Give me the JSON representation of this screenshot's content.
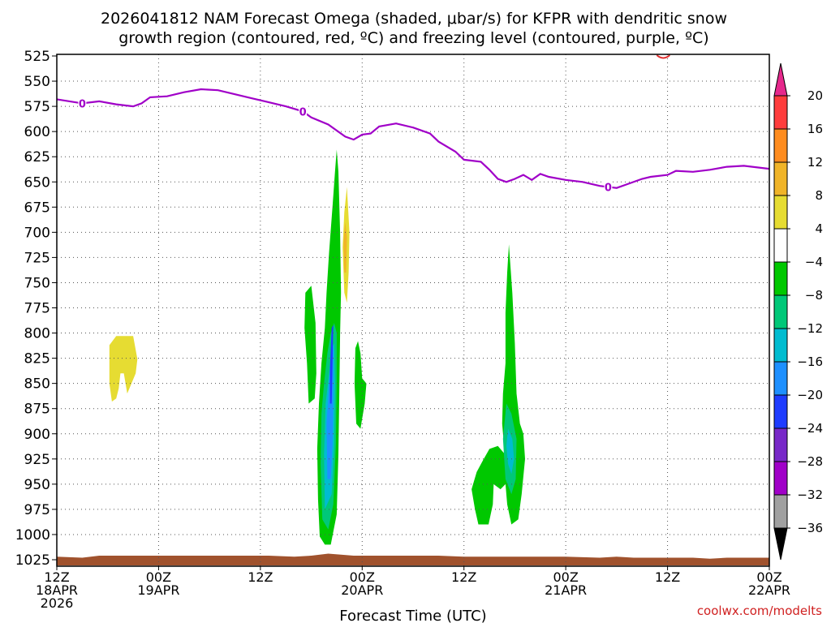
{
  "chart_data": {
    "type": "time-height cross section",
    "title_line1": "2026041812 NAM Forecast Omega (shaded, μbar/s) for KFPR with dendritic snow",
    "title_line2": "growth region (contoured, red, ºC) and freezing level (contoured, purple, ºC)",
    "xlabel": "Forecast Time (UTC)",
    "credit": "coolwx.com/modelts",
    "ylim": [
      525,
      1025
    ],
    "y_ticks": [
      525,
      550,
      575,
      600,
      625,
      650,
      675,
      700,
      725,
      750,
      775,
      800,
      825,
      850,
      875,
      900,
      925,
      950,
      975,
      1000,
      1025
    ],
    "xlim_hours": [
      0,
      84
    ],
    "x_ticks": [
      {
        "hour": 0,
        "line1": "12Z",
        "line2": "18APR",
        "line3": "2026"
      },
      {
        "hour": 12,
        "line1": "00Z",
        "line2": "19APR",
        "line3": ""
      },
      {
        "hour": 24,
        "line1": "12Z",
        "line2": "",
        "line3": ""
      },
      {
        "hour": 36,
        "line1": "00Z",
        "line2": "20APR",
        "line3": ""
      },
      {
        "hour": 48,
        "line1": "12Z",
        "line2": "",
        "line3": ""
      },
      {
        "hour": 60,
        "line1": "00Z",
        "line2": "21APR",
        "line3": ""
      },
      {
        "hour": 72,
        "line1": "12Z",
        "line2": "",
        "line3": ""
      },
      {
        "hour": 84,
        "line1": "00Z",
        "line2": "22APR",
        "line3": ""
      }
    ],
    "freezing_level": {
      "label": "0",
      "color": "#a000c8",
      "label_hours": [
        3,
        29,
        65
      ],
      "points": [
        [
          0,
          568
        ],
        [
          3,
          572
        ],
        [
          5,
          570
        ],
        [
          7,
          573
        ],
        [
          9,
          575
        ],
        [
          10,
          572
        ],
        [
          11,
          566
        ],
        [
          13,
          565
        ],
        [
          15,
          561
        ],
        [
          17,
          558
        ],
        [
          19,
          559
        ],
        [
          21,
          563
        ],
        [
          23,
          567
        ],
        [
          25,
          571
        ],
        [
          27,
          575
        ],
        [
          29,
          580
        ],
        [
          30,
          586
        ],
        [
          32,
          593
        ],
        [
          34,
          605
        ],
        [
          35,
          608
        ],
        [
          36,
          603
        ],
        [
          37,
          602
        ],
        [
          38,
          595
        ],
        [
          40,
          592
        ],
        [
          42,
          596
        ],
        [
          44,
          602
        ],
        [
          45,
          610
        ],
        [
          47,
          620
        ],
        [
          48,
          628
        ],
        [
          50,
          630
        ],
        [
          51,
          638
        ],
        [
          52,
          647
        ],
        [
          53,
          650
        ],
        [
          54,
          647
        ],
        [
          55,
          643
        ],
        [
          56,
          648
        ],
        [
          57,
          642
        ],
        [
          58,
          645
        ],
        [
          60,
          648
        ],
        [
          62,
          650
        ],
        [
          64,
          654
        ],
        [
          66,
          656
        ],
        [
          67,
          653
        ],
        [
          69,
          647
        ],
        [
          70,
          645
        ],
        [
          72,
          643
        ],
        [
          73,
          639
        ],
        [
          75,
          640
        ],
        [
          77,
          638
        ],
        [
          79,
          635
        ],
        [
          81,
          634
        ],
        [
          84,
          637
        ]
      ]
    },
    "dgz_contour": {
      "label": "dendritic snow growth region",
      "color": "#e03030",
      "hour": 71.5,
      "pressure": 525
    },
    "omega_regions": [
      {
        "color": "#00c800",
        "points": [
          [
            31.0,
            1002
          ],
          [
            30.8,
            965
          ],
          [
            30.7,
            915
          ],
          [
            30.9,
            870
          ],
          [
            31.2,
            830
          ],
          [
            31.6,
            795
          ],
          [
            31.8,
            760
          ],
          [
            32.1,
            720
          ],
          [
            32.5,
            675
          ],
          [
            32.8,
            640
          ],
          [
            33.0,
            618
          ],
          [
            33.2,
            640
          ],
          [
            33.4,
            700
          ],
          [
            33.5,
            760
          ],
          [
            33.4,
            800
          ],
          [
            33.3,
            860
          ],
          [
            33.2,
            920
          ],
          [
            33.0,
            980
          ],
          [
            32.3,
            1010
          ],
          [
            31.6,
            1010
          ]
        ]
      },
      {
        "color": "#00c878",
        "points": [
          [
            31.3,
            985
          ],
          [
            31.1,
            930
          ],
          [
            31.2,
            880
          ],
          [
            31.5,
            850
          ],
          [
            31.9,
            820
          ],
          [
            32.3,
            800
          ],
          [
            32.7,
            790
          ],
          [
            33.0,
            800
          ],
          [
            33.0,
            850
          ],
          [
            32.9,
            910
          ],
          [
            32.6,
            970
          ],
          [
            32.0,
            995
          ]
        ]
      },
      {
        "color": "#00bcd0",
        "points": [
          [
            31.6,
            975
          ],
          [
            31.5,
            920
          ],
          [
            31.7,
            870
          ],
          [
            32.1,
            840
          ],
          [
            32.4,
            815
          ],
          [
            32.7,
            810
          ],
          [
            32.8,
            850
          ],
          [
            32.7,
            910
          ],
          [
            32.4,
            960
          ]
        ]
      },
      {
        "color": "#1e90ff",
        "points": [
          [
            31.9,
            945
          ],
          [
            31.8,
            890
          ],
          [
            32.1,
            850
          ],
          [
            32.3,
            820
          ],
          [
            32.6,
            815
          ],
          [
            32.6,
            860
          ],
          [
            32.5,
            910
          ],
          [
            32.3,
            945
          ]
        ]
      },
      {
        "color": "#1e3cff",
        "points": [
          [
            32.2,
            870
          ],
          [
            32.2,
            835
          ],
          [
            32.4,
            795
          ],
          [
            32.6,
            792
          ],
          [
            32.5,
            830
          ],
          [
            32.4,
            870
          ]
        ]
      },
      {
        "color": "#00c800",
        "points": [
          [
            29.3,
            760
          ],
          [
            30.0,
            753
          ],
          [
            30.5,
            790
          ],
          [
            30.6,
            840
          ],
          [
            30.4,
            865
          ],
          [
            29.7,
            870
          ],
          [
            29.5,
            830
          ],
          [
            29.2,
            795
          ]
        ]
      },
      {
        "color": "#00c800",
        "points": [
          [
            35.5,
            808
          ],
          [
            35.8,
            820
          ],
          [
            36.0,
            845
          ],
          [
            36.5,
            850
          ],
          [
            36.3,
            870
          ],
          [
            35.8,
            895
          ],
          [
            35.3,
            890
          ],
          [
            35.1,
            850
          ],
          [
            35.2,
            815
          ]
        ]
      },
      {
        "color": "#e6dc32",
        "points": [
          [
            34.2,
            655
          ],
          [
            34.5,
            700
          ],
          [
            34.4,
            740
          ],
          [
            34.2,
            770
          ],
          [
            33.9,
            760
          ],
          [
            33.7,
            715
          ],
          [
            33.9,
            680
          ]
        ]
      },
      {
        "color": "#f0b428",
        "points": [
          [
            34.0,
            690
          ],
          [
            34.2,
            705
          ],
          [
            34.1,
            740
          ],
          [
            33.9,
            740
          ],
          [
            33.8,
            710
          ]
        ]
      },
      {
        "color": "#00c800",
        "points": [
          [
            53.3,
            712
          ],
          [
            53.7,
            760
          ],
          [
            54.0,
            810
          ],
          [
            54.2,
            860
          ],
          [
            54.6,
            890
          ],
          [
            55.0,
            900
          ],
          [
            55.2,
            925
          ],
          [
            54.8,
            960
          ],
          [
            54.4,
            985
          ],
          [
            53.6,
            990
          ],
          [
            53.1,
            970
          ],
          [
            52.9,
            950
          ],
          [
            52.3,
            955
          ],
          [
            51.5,
            950
          ],
          [
            51.4,
            970
          ],
          [
            50.9,
            990
          ],
          [
            49.7,
            990
          ],
          [
            49.3,
            975
          ],
          [
            48.9,
            955
          ],
          [
            49.5,
            938
          ],
          [
            50.2,
            927
          ],
          [
            51.0,
            915
          ],
          [
            52.0,
            912
          ],
          [
            52.8,
            920
          ],
          [
            52.5,
            890
          ],
          [
            52.6,
            860
          ],
          [
            52.9,
            830
          ],
          [
            52.9,
            780
          ],
          [
            53.1,
            740
          ]
        ]
      },
      {
        "color": "#00c878",
        "points": [
          [
            53.0,
            870
          ],
          [
            53.6,
            880
          ],
          [
            54.2,
            905
          ],
          [
            54.1,
            945
          ],
          [
            53.6,
            960
          ],
          [
            52.9,
            945
          ],
          [
            52.6,
            905
          ]
        ]
      },
      {
        "color": "#00bcd0",
        "points": [
          [
            53.2,
            895
          ],
          [
            53.7,
            905
          ],
          [
            53.9,
            925
          ],
          [
            53.6,
            940
          ],
          [
            53.2,
            930
          ],
          [
            53.0,
            912
          ]
        ]
      },
      {
        "color": "#e6dc32",
        "points": [
          [
            6.2,
            812
          ],
          [
            7.0,
            803
          ],
          [
            8.0,
            803
          ],
          [
            9.0,
            803
          ],
          [
            9.5,
            826
          ],
          [
            9.3,
            840
          ],
          [
            8.8,
            850
          ],
          [
            8.3,
            860
          ],
          [
            7.9,
            840
          ],
          [
            7.5,
            840
          ],
          [
            7.3,
            855
          ],
          [
            7.0,
            865
          ],
          [
            6.5,
            868
          ],
          [
            6.2,
            850
          ]
        ]
      }
    ],
    "terrain": {
      "color": "#a0522d",
      "top_points": [
        [
          0,
          1022
        ],
        [
          3,
          1023
        ],
        [
          5,
          1021
        ],
        [
          10,
          1021
        ],
        [
          15,
          1021
        ],
        [
          20,
          1021
        ],
        [
          25,
          1021
        ],
        [
          28,
          1022
        ],
        [
          30,
          1021
        ],
        [
          32,
          1019
        ],
        [
          33.5,
          1020
        ],
        [
          35,
          1021
        ],
        [
          40,
          1021
        ],
        [
          45,
          1021
        ],
        [
          48,
          1022
        ],
        [
          55,
          1022
        ],
        [
          60,
          1022
        ],
        [
          64,
          1023
        ],
        [
          66,
          1022
        ],
        [
          68,
          1023
        ],
        [
          75,
          1023
        ],
        [
          77,
          1024
        ],
        [
          79,
          1023
        ],
        [
          84,
          1023
        ]
      ]
    },
    "colorbar": {
      "ticks": [
        "20",
        "16",
        "12",
        "8",
        "4",
        "−4",
        "−8",
        "−12",
        "−16",
        "−20",
        "−24",
        "−28",
        "−32",
        "−36"
      ],
      "top_arrow_color": "#e6288c",
      "bottom_arrow_color": "#000000",
      "bins": [
        {
          "color": "#ff3c3c"
        },
        {
          "color": "#ff8c1e"
        },
        {
          "color": "#f0b428"
        },
        {
          "color": "#e6dc32"
        },
        {
          "color": "#ffffff"
        },
        {
          "color": "#00c800"
        },
        {
          "color": "#00c878"
        },
        {
          "color": "#00bcd0"
        },
        {
          "color": "#1e90ff"
        },
        {
          "color": "#1e3cff"
        },
        {
          "color": "#7828c8"
        },
        {
          "color": "#a000c8"
        },
        {
          "color": "#a0a0a0"
        }
      ]
    }
  }
}
